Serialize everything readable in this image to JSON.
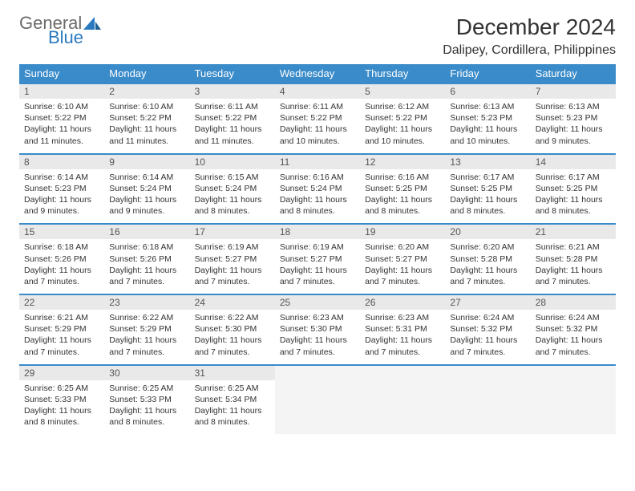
{
  "brand": {
    "word1": "General",
    "word2": "Blue"
  },
  "title": "December 2024",
  "location": "Dalipey, Cordillera, Philippines",
  "colors": {
    "header_bg": "#3a8bc9",
    "header_text": "#ffffff",
    "daynum_bg": "#e9e9e9",
    "border": "#3a8bc9",
    "brand_gray": "#6b6b6b",
    "brand_blue": "#2b7ac0"
  },
  "weekdays": [
    "Sunday",
    "Monday",
    "Tuesday",
    "Wednesday",
    "Thursday",
    "Friday",
    "Saturday"
  ],
  "weeks": [
    [
      {
        "n": "1",
        "sunrise": "Sunrise: 6:10 AM",
        "sunset": "Sunset: 5:22 PM",
        "day": "Daylight: 11 hours and 11 minutes."
      },
      {
        "n": "2",
        "sunrise": "Sunrise: 6:10 AM",
        "sunset": "Sunset: 5:22 PM",
        "day": "Daylight: 11 hours and 11 minutes."
      },
      {
        "n": "3",
        "sunrise": "Sunrise: 6:11 AM",
        "sunset": "Sunset: 5:22 PM",
        "day": "Daylight: 11 hours and 11 minutes."
      },
      {
        "n": "4",
        "sunrise": "Sunrise: 6:11 AM",
        "sunset": "Sunset: 5:22 PM",
        "day": "Daylight: 11 hours and 10 minutes."
      },
      {
        "n": "5",
        "sunrise": "Sunrise: 6:12 AM",
        "sunset": "Sunset: 5:22 PM",
        "day": "Daylight: 11 hours and 10 minutes."
      },
      {
        "n": "6",
        "sunrise": "Sunrise: 6:13 AM",
        "sunset": "Sunset: 5:23 PM",
        "day": "Daylight: 11 hours and 10 minutes."
      },
      {
        "n": "7",
        "sunrise": "Sunrise: 6:13 AM",
        "sunset": "Sunset: 5:23 PM",
        "day": "Daylight: 11 hours and 9 minutes."
      }
    ],
    [
      {
        "n": "8",
        "sunrise": "Sunrise: 6:14 AM",
        "sunset": "Sunset: 5:23 PM",
        "day": "Daylight: 11 hours and 9 minutes."
      },
      {
        "n": "9",
        "sunrise": "Sunrise: 6:14 AM",
        "sunset": "Sunset: 5:24 PM",
        "day": "Daylight: 11 hours and 9 minutes."
      },
      {
        "n": "10",
        "sunrise": "Sunrise: 6:15 AM",
        "sunset": "Sunset: 5:24 PM",
        "day": "Daylight: 11 hours and 8 minutes."
      },
      {
        "n": "11",
        "sunrise": "Sunrise: 6:16 AM",
        "sunset": "Sunset: 5:24 PM",
        "day": "Daylight: 11 hours and 8 minutes."
      },
      {
        "n": "12",
        "sunrise": "Sunrise: 6:16 AM",
        "sunset": "Sunset: 5:25 PM",
        "day": "Daylight: 11 hours and 8 minutes."
      },
      {
        "n": "13",
        "sunrise": "Sunrise: 6:17 AM",
        "sunset": "Sunset: 5:25 PM",
        "day": "Daylight: 11 hours and 8 minutes."
      },
      {
        "n": "14",
        "sunrise": "Sunrise: 6:17 AM",
        "sunset": "Sunset: 5:25 PM",
        "day": "Daylight: 11 hours and 8 minutes."
      }
    ],
    [
      {
        "n": "15",
        "sunrise": "Sunrise: 6:18 AM",
        "sunset": "Sunset: 5:26 PM",
        "day": "Daylight: 11 hours and 7 minutes."
      },
      {
        "n": "16",
        "sunrise": "Sunrise: 6:18 AM",
        "sunset": "Sunset: 5:26 PM",
        "day": "Daylight: 11 hours and 7 minutes."
      },
      {
        "n": "17",
        "sunrise": "Sunrise: 6:19 AM",
        "sunset": "Sunset: 5:27 PM",
        "day": "Daylight: 11 hours and 7 minutes."
      },
      {
        "n": "18",
        "sunrise": "Sunrise: 6:19 AM",
        "sunset": "Sunset: 5:27 PM",
        "day": "Daylight: 11 hours and 7 minutes."
      },
      {
        "n": "19",
        "sunrise": "Sunrise: 6:20 AM",
        "sunset": "Sunset: 5:27 PM",
        "day": "Daylight: 11 hours and 7 minutes."
      },
      {
        "n": "20",
        "sunrise": "Sunrise: 6:20 AM",
        "sunset": "Sunset: 5:28 PM",
        "day": "Daylight: 11 hours and 7 minutes."
      },
      {
        "n": "21",
        "sunrise": "Sunrise: 6:21 AM",
        "sunset": "Sunset: 5:28 PM",
        "day": "Daylight: 11 hours and 7 minutes."
      }
    ],
    [
      {
        "n": "22",
        "sunrise": "Sunrise: 6:21 AM",
        "sunset": "Sunset: 5:29 PM",
        "day": "Daylight: 11 hours and 7 minutes."
      },
      {
        "n": "23",
        "sunrise": "Sunrise: 6:22 AM",
        "sunset": "Sunset: 5:29 PM",
        "day": "Daylight: 11 hours and 7 minutes."
      },
      {
        "n": "24",
        "sunrise": "Sunrise: 6:22 AM",
        "sunset": "Sunset: 5:30 PM",
        "day": "Daylight: 11 hours and 7 minutes."
      },
      {
        "n": "25",
        "sunrise": "Sunrise: 6:23 AM",
        "sunset": "Sunset: 5:30 PM",
        "day": "Daylight: 11 hours and 7 minutes."
      },
      {
        "n": "26",
        "sunrise": "Sunrise: 6:23 AM",
        "sunset": "Sunset: 5:31 PM",
        "day": "Daylight: 11 hours and 7 minutes."
      },
      {
        "n": "27",
        "sunrise": "Sunrise: 6:24 AM",
        "sunset": "Sunset: 5:32 PM",
        "day": "Daylight: 11 hours and 7 minutes."
      },
      {
        "n": "28",
        "sunrise": "Sunrise: 6:24 AM",
        "sunset": "Sunset: 5:32 PM",
        "day": "Daylight: 11 hours and 7 minutes."
      }
    ],
    [
      {
        "n": "29",
        "sunrise": "Sunrise: 6:25 AM",
        "sunset": "Sunset: 5:33 PM",
        "day": "Daylight: 11 hours and 8 minutes."
      },
      {
        "n": "30",
        "sunrise": "Sunrise: 6:25 AM",
        "sunset": "Sunset: 5:33 PM",
        "day": "Daylight: 11 hours and 8 minutes."
      },
      {
        "n": "31",
        "sunrise": "Sunrise: 6:25 AM",
        "sunset": "Sunset: 5:34 PM",
        "day": "Daylight: 11 hours and 8 minutes."
      },
      null,
      null,
      null,
      null
    ]
  ]
}
